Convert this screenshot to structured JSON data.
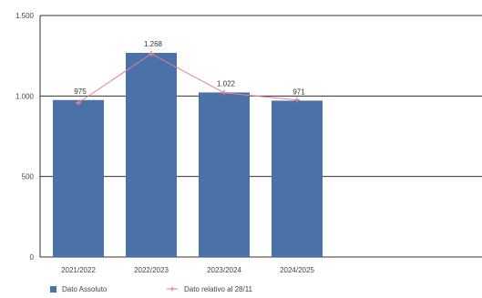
{
  "chart_data": {
    "type": "bar",
    "categories": [
      "2021/2022",
      "2022/2023",
      "2023/2024",
      "2024/2025"
    ],
    "series": [
      {
        "name": "Dato Assoluto",
        "type": "bar",
        "values": [
          975,
          1268,
          1022,
          971
        ],
        "labels": [
          "975",
          "1.268",
          "1.022",
          "971"
        ]
      },
      {
        "name": "Dato relativo al 28/11",
        "type": "line",
        "values": [
          958,
          1262,
          1020,
          975
        ]
      }
    ],
    "y_ticks": [
      {
        "value": 0,
        "label": "0"
      },
      {
        "value": 500,
        "label": "500"
      },
      {
        "value": 1000,
        "label": "1.000"
      },
      {
        "value": 1500,
        "label": "1.500"
      }
    ],
    "ylim": [
      0,
      1500
    ],
    "grid": true,
    "legend_position": "bottom-left",
    "colors": {
      "bar": "#4a72a9",
      "line": "#e07f8d",
      "grid": "#333333",
      "axis": "#333333"
    }
  }
}
